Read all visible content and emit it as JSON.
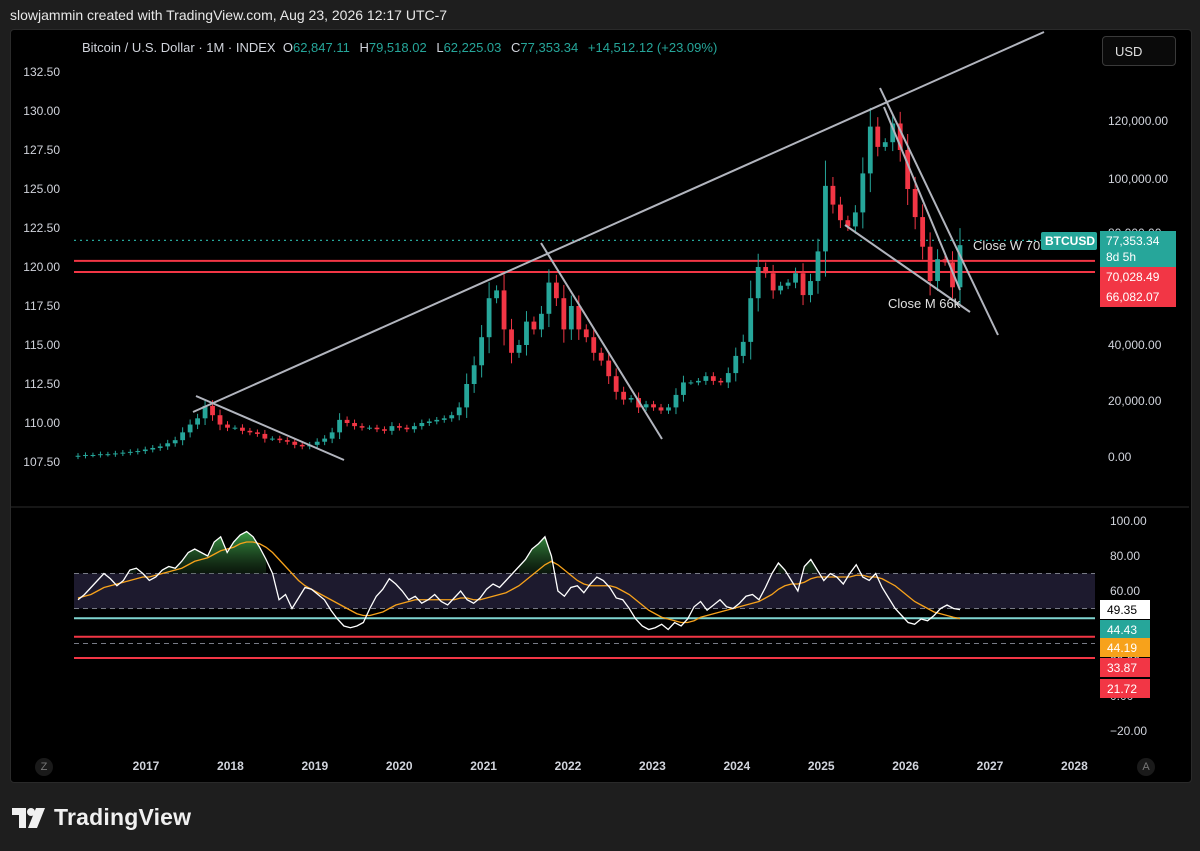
{
  "header": {
    "text": "slowjammin created with TradingView.com, Aug 23, 2026 12:17 UTC-7"
  },
  "legend": {
    "symbol": "Bitcoin / U.S. Dollar · 1M · INDEX",
    "o_label": "O",
    "o": "62,847.11",
    "h_label": "H",
    "h": "79,518.02",
    "l_label": "L",
    "l": "62,225.03",
    "c_label": "C",
    "c": "77,353.34",
    "change": "+14,512.12 (+23.09%)"
  },
  "currency_button": "USD",
  "chart_data": [
    {
      "type": "candlestick",
      "left_axis_ticks": [
        "132.50",
        "130.00",
        "127.50",
        "125.00",
        "122.50",
        "120.00",
        "117.50",
        "115.00",
        "112.50",
        "110.00",
        "107.50"
      ],
      "left_axis_values": [
        132.5,
        130,
        127.5,
        125,
        122.5,
        120,
        117.5,
        115,
        112.5,
        110,
        107.5
      ],
      "right_axis_ticks": [
        "120,000.00",
        "100,000.00",
        "80,000.00",
        "40,000.00",
        "20,000.00",
        "0.00"
      ],
      "right_axis_values": [
        120000,
        100000,
        80000,
        40000,
        20000,
        0
      ],
      "x_ticks": [
        "2017",
        "2018",
        "2019",
        "2020",
        "2021",
        "2022",
        "2023",
        "2024",
        "2025",
        "2026",
        "2027",
        "2028"
      ],
      "price_labels": [
        {
          "text": "BTCUSD",
          "color": "#26a69a"
        },
        {
          "text": "77,353.34",
          "color": "#26a69a"
        },
        {
          "text": "8d 5h",
          "color": "#26a69a"
        },
        {
          "text": "70,028.49",
          "color": "#f23645"
        },
        {
          "text": "66,082.07",
          "color": "#f23645"
        }
      ],
      "annotations": [
        "Close W 70",
        "Close M 66k"
      ],
      "horizontal_levels": [
        70028.49,
        66082.07
      ],
      "last_price": 77353.34,
      "candles_left_scale_close": [
        107.9,
        107.95,
        107.95,
        108.0,
        108.0,
        108.05,
        108.1,
        108.15,
        108.2,
        108.3,
        108.4,
        108.5,
        108.7,
        108.9,
        109.4,
        109.9,
        110.3,
        111.1,
        110.5,
        109.9,
        109.7,
        109.7,
        109.5,
        109.4,
        109.3,
        109.0,
        109.0,
        108.9,
        108.8,
        108.6,
        108.5,
        108.6,
        108.8,
        109.0,
        109.4,
        110.2,
        110.0,
        109.8,
        109.7,
        109.7,
        109.6,
        109.5,
        109.8,
        109.7,
        109.6,
        109.8,
        110.0,
        110.1,
        110.2,
        110.3,
        110.5,
        111.0,
        112.5,
        113.7,
        115.5,
        118.0,
        118.5,
        116.0,
        114.5,
        115.0,
        116.5,
        116.0,
        117.0,
        119.0,
        118.0,
        116.0,
        117.5,
        116.0,
        115.5,
        114.5,
        114.0,
        113.0,
        112.0,
        111.5,
        111.6,
        111.0,
        111.2,
        111.0,
        110.8,
        111.0,
        111.8,
        112.6,
        112.6,
        112.7,
        113.0,
        112.7,
        112.6,
        113.2,
        114.3,
        115.2,
        118.0,
        120.0,
        119.6,
        118.5,
        118.8,
        119.0,
        119.6,
        118.2,
        119.1,
        121.0,
        125.2,
        124.0,
        123.0,
        122.6,
        123.5,
        126.0,
        129.0,
        127.7,
        128.0,
        129.2,
        127.5,
        125.0,
        123.2,
        121.3,
        119.1,
        120.5,
        120.3,
        118.7,
        121.4
      ]
    },
    {
      "type": "line",
      "name": "RSI",
      "y_ticks": [
        "100.00",
        "80.00",
        "60.00",
        "40.00",
        "20.00",
        "0.00",
        "−20.00"
      ],
      "y_values": [
        100,
        80,
        60,
        40,
        20,
        0,
        -20
      ],
      "value_labels": [
        {
          "text": "49.35",
          "color": "#ffffff"
        },
        {
          "text": "44.43",
          "color": "#26a69a"
        },
        {
          "text": "44.19",
          "color": "#f7a21b"
        },
        {
          "text": "33.87",
          "color": "#f23645"
        },
        {
          "text": "21.72",
          "color": "#f23645"
        }
      ],
      "bands": [
        70,
        50,
        30
      ],
      "levels": [
        44.43,
        33.87,
        21.72
      ],
      "rsi": [
        55,
        58,
        62,
        66,
        70,
        67,
        63,
        66,
        72,
        73,
        70,
        66,
        68,
        72,
        74,
        73,
        77,
        82,
        84,
        82,
        80,
        88,
        91,
        82,
        88,
        92,
        94,
        91,
        85,
        78,
        70,
        55,
        58,
        50,
        56,
        62,
        61,
        58,
        55,
        49,
        44,
        40,
        39,
        40,
        42,
        50,
        57,
        61,
        67,
        64,
        60,
        55,
        57,
        53,
        55,
        58,
        54,
        52,
        56,
        60,
        55,
        53,
        56,
        61,
        64,
        62,
        66,
        70,
        74,
        78,
        84,
        87,
        91,
        80,
        60,
        57,
        62,
        63,
        59,
        64,
        68,
        66,
        62,
        56,
        55,
        50,
        44,
        40,
        38,
        39,
        41,
        38,
        42,
        40,
        44,
        51,
        54,
        49,
        52,
        55,
        51,
        50,
        53,
        57,
        58,
        55,
        62,
        70,
        76,
        72,
        66,
        60,
        74,
        78,
        72,
        66,
        70,
        68,
        64,
        70,
        75,
        68,
        66,
        70,
        62,
        56,
        50,
        46,
        42,
        41,
        44,
        43,
        46,
        50,
        52,
        50,
        49.35
      ],
      "rsi_ma": [
        56,
        57,
        58,
        60,
        62,
        63,
        64,
        65,
        66,
        67,
        68,
        68,
        69,
        70,
        71,
        72,
        73,
        75,
        77,
        78,
        79,
        81,
        83,
        84,
        85,
        87,
        88,
        88,
        87,
        85,
        82,
        78,
        74,
        70,
        66,
        63,
        61,
        59,
        57,
        55,
        53,
        51,
        49,
        47,
        46,
        46,
        47,
        48,
        50,
        52,
        53,
        54,
        55,
        55,
        55,
        55,
        55,
        55,
        55,
        56,
        56,
        55,
        55,
        56,
        57,
        58,
        59,
        61,
        63,
        66,
        69,
        72,
        75,
        77,
        75,
        72,
        69,
        66,
        64,
        63,
        63,
        63,
        63,
        62,
        60,
        58,
        55,
        52,
        49,
        47,
        45,
        44,
        43,
        42,
        42,
        43,
        45,
        46,
        47,
        48,
        49,
        50,
        51,
        52,
        53,
        54,
        56,
        58,
        61,
        63,
        64,
        64,
        65,
        67,
        68,
        68,
        68,
        68,
        68,
        68,
        69,
        69,
        68,
        68,
        67,
        65,
        63,
        60,
        57,
        54,
        52,
        50,
        48,
        47,
        46,
        45,
        44.19
      ]
    }
  ],
  "brand": {
    "name": "TradingView"
  },
  "corner_labels": {
    "left": "Z",
    "right": "A"
  }
}
